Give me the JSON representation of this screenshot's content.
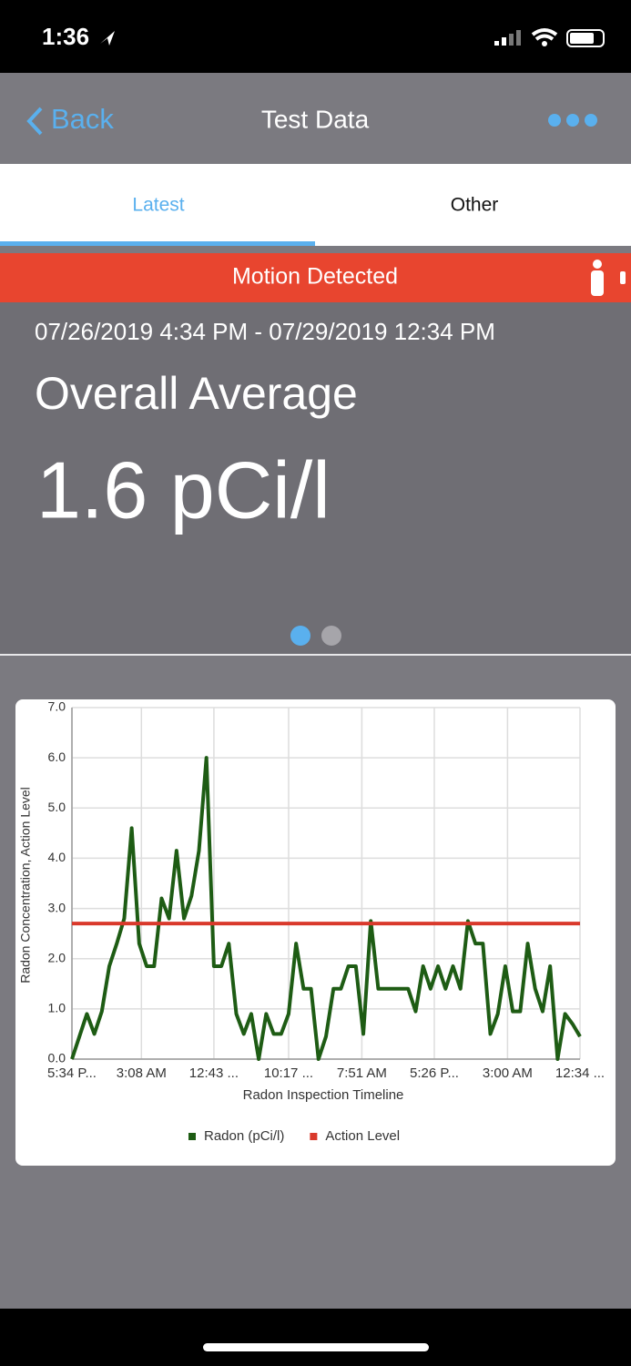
{
  "status_bar": {
    "time": "1:36"
  },
  "nav": {
    "back": "Back",
    "title": "Test Data"
  },
  "tabs": [
    "Latest",
    "Other"
  ],
  "banner": "Motion Detected",
  "summary": {
    "date_range": "07/26/2019 4:34 PM - 07/29/2019 12:34 PM",
    "label": "Overall Average",
    "value": "1.6 pCi/l"
  },
  "chart_data": {
    "type": "line",
    "xlabel": "Radon Inspection Timeline",
    "ylabel": "Radon Concentration, Action Level",
    "x": [
      0,
      1,
      2,
      3,
      4,
      5,
      6,
      7,
      8,
      9,
      10,
      11,
      12,
      13,
      14,
      15,
      16,
      17,
      18,
      19,
      20,
      21,
      22,
      23,
      24,
      25,
      26,
      27,
      28,
      29,
      30,
      31,
      32,
      33,
      34,
      35,
      36,
      37,
      38,
      39,
      40,
      41,
      42,
      43,
      44,
      45,
      46,
      47,
      48,
      49,
      50,
      51,
      52,
      53,
      54,
      55,
      56,
      57,
      58,
      59,
      60,
      61,
      62,
      63,
      64,
      65,
      66,
      67,
      68
    ],
    "xlim": [
      0,
      68
    ],
    "xticks": [
      {
        "value": 0,
        "label": "5:34 P..."
      },
      {
        "value": 9.3,
        "label": "3:08 AM"
      },
      {
        "value": 19,
        "label": "12:43 ..."
      },
      {
        "value": 29,
        "label": "10:17 ..."
      },
      {
        "value": 38.8,
        "label": "7:51 AM"
      },
      {
        "value": 48.5,
        "label": "5:26 P..."
      },
      {
        "value": 58.3,
        "label": "3:00 AM"
      },
      {
        "value": 68,
        "label": "12:34 ..."
      }
    ],
    "ylim": [
      0,
      7
    ],
    "yticks": [
      {
        "value": 0,
        "label": "0.0"
      },
      {
        "value": 1,
        "label": "1.0"
      },
      {
        "value": 2,
        "label": "2.0"
      },
      {
        "value": 3,
        "label": "3.0"
      },
      {
        "value": 4,
        "label": "4.0"
      },
      {
        "value": 5,
        "label": "5.0"
      },
      {
        "value": 6,
        "label": "6.0"
      },
      {
        "value": 7,
        "label": "7.0"
      }
    ],
    "grid": true,
    "series": [
      {
        "name": "Radon (pCi/l)",
        "color": "#1e5c14",
        "values": [
          0,
          0.45,
          0.9,
          0.5,
          0.95,
          1.85,
          2.3,
          2.8,
          4.6,
          2.3,
          1.85,
          1.85,
          3.2,
          2.8,
          4.15,
          2.8,
          3.25,
          4.15,
          6.0,
          1.85,
          1.85,
          2.3,
          0.9,
          0.5,
          0.9,
          0,
          0.9,
          0.5,
          0.5,
          0.9,
          2.3,
          1.4,
          1.4,
          0,
          0.45,
          1.4,
          1.4,
          1.85,
          1.85,
          0.5,
          2.75,
          1.4,
          1.4,
          1.4,
          1.4,
          1.4,
          0.95,
          1.85,
          1.4,
          1.85,
          1.4,
          1.85,
          1.4,
          2.75,
          2.3,
          2.3,
          0.5,
          0.9,
          1.85,
          0.95,
          0.95,
          2.3,
          1.4,
          0.95,
          1.85,
          0,
          0.9,
          0.7,
          0.45
        ]
      },
      {
        "name": "Action Level",
        "color": "#d9392b",
        "x": [
          0,
          68
        ],
        "values": [
          2.7,
          2.7
        ]
      }
    ]
  }
}
